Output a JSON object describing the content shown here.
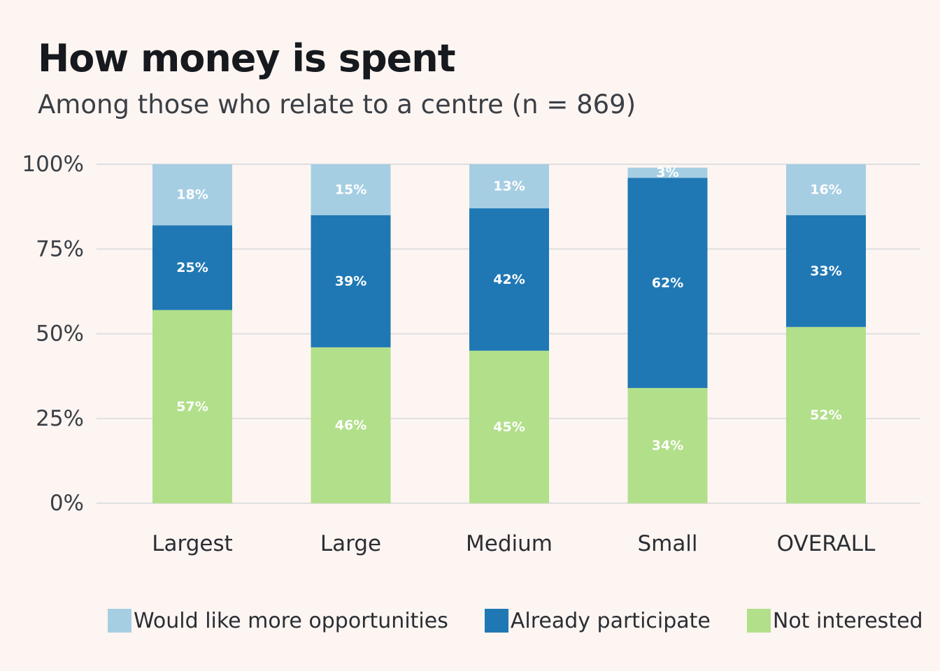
{
  "chart_data": {
    "type": "bar",
    "stacked": true,
    "title": "How money is spent",
    "subtitle": "Among those who relate to a centre (n = 869)",
    "categories": [
      "Largest",
      "Large",
      "Medium",
      "Small",
      "OVERALL"
    ],
    "series": [
      {
        "name": "Not interested",
        "color": "#b2df8a",
        "values": [
          57,
          46,
          45,
          34,
          52
        ],
        "labels": [
          "57%",
          "46%",
          "45%",
          "34%",
          "52%"
        ]
      },
      {
        "name": "Already participate",
        "color": "#1f78b4",
        "values": [
          25,
          39,
          42,
          62,
          33
        ],
        "labels": [
          "25%",
          "39%",
          "42%",
          "62%",
          "33%"
        ]
      },
      {
        "name": "Would like more opportunities",
        "color": "#a6cee3",
        "values": [
          18,
          15,
          13,
          3,
          16
        ],
        "labels": [
          "18%",
          "15%",
          "13%",
          "3%",
          "16%"
        ]
      }
    ],
    "ylim": [
      0,
      100
    ],
    "yticks": [
      0,
      25,
      50,
      75,
      100
    ],
    "ytick_labels": [
      "0%",
      "25%",
      "50%",
      "75%",
      "100%"
    ],
    "xlabel": "",
    "ylabel": "",
    "grid": true,
    "legend_position": "bottom",
    "legend_order": [
      "Would like more opportunities",
      "Already participate",
      "Not interested"
    ]
  }
}
